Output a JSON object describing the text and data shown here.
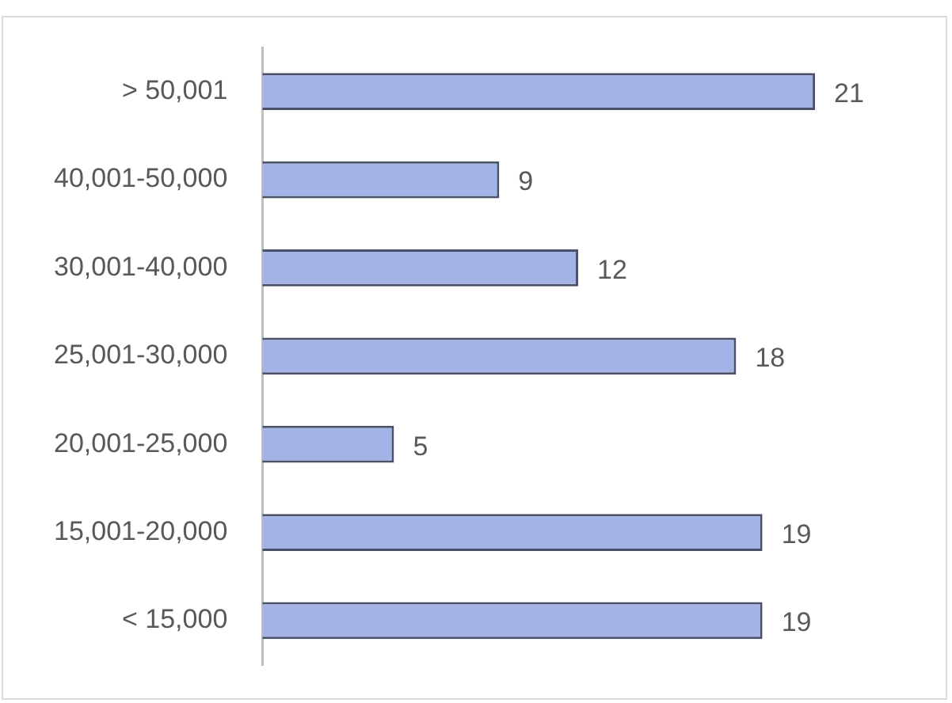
{
  "chart_data": {
    "type": "bar",
    "orientation": "horizontal",
    "categories": [
      "> 50,001",
      "40,001-50,000",
      "30,001-40,000",
      "25,001-30,000",
      "20,001-25,000",
      "15,001-20,000",
      "< 15,000"
    ],
    "values": [
      21,
      9,
      12,
      18,
      5,
      19,
      19
    ],
    "color": "#a3b3e6",
    "data_labels": true,
    "tick_labels": "y"
  }
}
